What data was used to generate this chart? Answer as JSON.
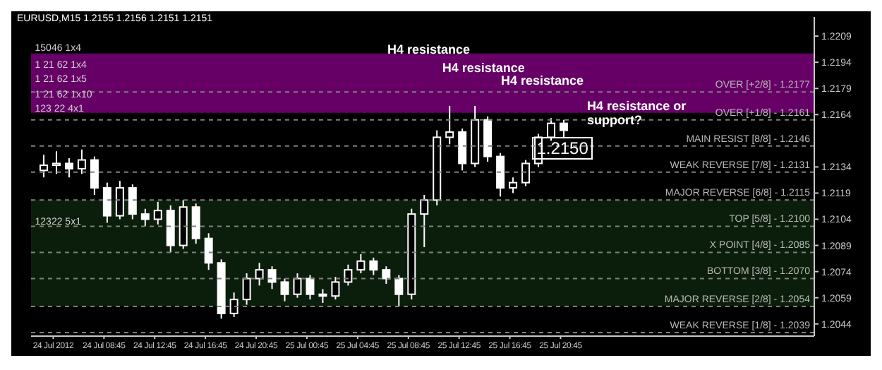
{
  "chart_data": {
    "type": "candlestick",
    "title": "EURUSD,M15  1.2155 1.2156 1.2151 1.2151",
    "x": [
      "2012-07-24T04:00",
      "2012-07-24T05:00",
      "2012-07-24T06:00",
      "2012-07-24T07:00",
      "2012-07-24T08:00",
      "2012-07-24T09:00",
      "2012-07-24T10:00",
      "2012-07-24T11:00",
      "2012-07-24T12:00",
      "2012-07-24T13:00",
      "2012-07-24T14:00",
      "2012-07-24T15:00",
      "2012-07-24T16:00",
      "2012-07-24T17:00",
      "2012-07-24T18:00",
      "2012-07-24T19:00",
      "2012-07-24T20:00",
      "2012-07-24T21:00",
      "2012-07-24T22:00",
      "2012-07-24T23:00",
      "2012-07-25T00:00",
      "2012-07-25T01:00",
      "2012-07-25T02:00",
      "2012-07-25T03:00",
      "2012-07-25T04:00",
      "2012-07-25T05:00",
      "2012-07-25T06:00",
      "2012-07-25T07:00",
      "2012-07-25T08:00",
      "2012-07-25T09:00",
      "2012-07-25T10:00",
      "2012-07-25T11:00",
      "2012-07-25T12:00",
      "2012-07-25T13:00",
      "2012-07-25T14:00",
      "2012-07-25T15:00",
      "2012-07-25T16:00",
      "2012-07-25T17:00",
      "2012-07-25T18:00",
      "2012-07-25T19:00",
      "2012-07-25T20:00",
      "2012-07-25T21:00"
    ],
    "ohlc": [
      [
        1.2132,
        1.2141,
        1.2128,
        1.2135
      ],
      [
        1.2135,
        1.2143,
        1.213,
        1.2136
      ],
      [
        1.2136,
        1.2139,
        1.2128,
        1.2133
      ],
      [
        1.2133,
        1.2144,
        1.213,
        1.2138
      ],
      [
        1.2138,
        1.214,
        1.2118,
        1.2122
      ],
      [
        1.2122,
        1.2125,
        1.2102,
        1.2106
      ],
      [
        1.2106,
        1.2126,
        1.2104,
        1.2122
      ],
      [
        1.2122,
        1.2124,
        1.2104,
        1.2107
      ],
      [
        1.2107,
        1.211,
        1.21,
        1.2104
      ],
      [
        1.2104,
        1.2114,
        1.2101,
        1.2109
      ],
      [
        1.2109,
        1.2112,
        1.2085,
        1.2089
      ],
      [
        1.2089,
        1.2115,
        1.2087,
        1.2111
      ],
      [
        1.2111,
        1.2113,
        1.209,
        1.2093
      ],
      [
        1.2093,
        1.2096,
        1.2075,
        1.2079
      ],
      [
        1.2079,
        1.2081,
        1.2047,
        1.205
      ],
      [
        1.205,
        1.2062,
        1.2048,
        1.2058
      ],
      [
        1.2058,
        1.2073,
        1.2055,
        1.207
      ],
      [
        1.207,
        1.2079,
        1.2066,
        1.2075
      ],
      [
        1.2075,
        1.2077,
        1.2064,
        1.2068
      ],
      [
        1.2068,
        1.207,
        1.2057,
        1.2061
      ],
      [
        1.2061,
        1.2073,
        1.2059,
        1.207
      ],
      [
        1.207,
        1.2072,
        1.2058,
        1.2061
      ],
      [
        1.2061,
        1.2064,
        1.2056,
        1.206
      ],
      [
        1.206,
        1.2071,
        1.2058,
        1.2068
      ],
      [
        1.2068,
        1.2078,
        1.2066,
        1.2075
      ],
      [
        1.2075,
        1.2084,
        1.2073,
        1.208
      ],
      [
        1.208,
        1.2082,
        1.2072,
        1.2075
      ],
      [
        1.2075,
        1.2077,
        1.2067,
        1.207
      ],
      [
        1.207,
        1.2072,
        1.2054,
        1.2061
      ],
      [
        1.2061,
        1.211,
        1.2058,
        1.2107
      ],
      [
        1.2107,
        1.2118,
        1.2088,
        1.2115
      ],
      [
        1.2115,
        1.2155,
        1.2112,
        1.2151
      ],
      [
        1.2151,
        1.2169,
        1.2147,
        1.2154
      ],
      [
        1.2154,
        1.2156,
        1.2132,
        1.2136
      ],
      [
        1.2136,
        1.2169,
        1.2134,
        1.2161
      ],
      [
        1.2161,
        1.2163,
        1.2137,
        1.214
      ],
      [
        1.214,
        1.2142,
        1.2117,
        1.2122
      ],
      [
        1.2122,
        1.2128,
        1.2119,
        1.2125
      ],
      [
        1.2125,
        1.2138,
        1.2123,
        1.2136
      ],
      [
        1.2136,
        1.2153,
        1.2134,
        1.2151
      ],
      [
        1.2151,
        1.2162,
        1.2149,
        1.2159
      ],
      [
        1.2159,
        1.2161,
        1.2151,
        1.2155
      ]
    ],
    "color": "#ffffff",
    "xlim": [
      "2012-07-24T03:00",
      "2012-07-26T16:45"
    ],
    "xticks": [
      {
        "value": "2012-07-24T04:45",
        "label": "24 Jul 2012"
      },
      {
        "value": "2012-07-24T08:45",
        "label": "24 Jul 08:45"
      },
      {
        "value": "2012-07-24T12:45",
        "label": "24 Jul 12:45"
      },
      {
        "value": "2012-07-24T16:45",
        "label": "24 Jul 16:45"
      },
      {
        "value": "2012-07-24T20:45",
        "label": "24 Jul 20:45"
      },
      {
        "value": "2012-07-25T00:45",
        "label": "25 Jul 00:45"
      },
      {
        "value": "2012-07-25T04:45",
        "label": "25 Jul 04:45"
      },
      {
        "value": "2012-07-25T08:45",
        "label": "25 Jul 08:45"
      },
      {
        "value": "2012-07-25T12:45",
        "label": "25 Jul 12:45"
      },
      {
        "value": "2012-07-25T16:45",
        "label": "25 Jul 16:45"
      },
      {
        "value": "2012-07-25T20:45",
        "label": "25 Jul 20:45"
      }
    ],
    "ylim": [
      1.2037,
      1.222
    ],
    "yticks": [
      1.2209,
      1.2194,
      1.2179,
      1.2164,
      1.2134,
      1.2119,
      1.2104,
      1.2089,
      1.2074,
      1.2059,
      1.2044
    ],
    "ref_lines": [
      {
        "axis": "y",
        "value": 1.2177,
        "label": "OVER  [+2/8] - 1.2177",
        "color": "#808080",
        "line_style": "dashed"
      },
      {
        "axis": "y",
        "value": 1.2161,
        "label": "OVER  [+1/8] - 1.2161",
        "color": "#808080",
        "line_style": "dashed"
      },
      {
        "axis": "y",
        "value": 1.2146,
        "label": "MAIN RESIST  [8/8] - 1.2146",
        "color": "#808080",
        "line_style": "dashed"
      },
      {
        "axis": "y",
        "value": 1.2131,
        "label": "WEAK REVERSE  [7/8] - 1.2131",
        "color": "#808080",
        "line_style": "dashed"
      },
      {
        "axis": "y",
        "value": 1.2115,
        "label": "MAJOR REVERSE  [6/8] - 1.2115",
        "color": "#808080",
        "line_style": "dashed"
      },
      {
        "axis": "y",
        "value": 1.21,
        "label": "TOP  [5/8] - 1.2100",
        "color": "#808080",
        "line_style": "dashed"
      },
      {
        "axis": "y",
        "value": 1.2085,
        "label": "X POINT  [4/8] - 1.2085",
        "color": "#808080",
        "line_style": "dashed"
      },
      {
        "axis": "y",
        "value": 1.207,
        "label": "BOTTOM  [3/8] - 1.2070",
        "color": "#808080",
        "line_style": "dashed"
      },
      {
        "axis": "y",
        "value": 1.2054,
        "label": "MAJOR REVERSE  [2/8] - 1.2054",
        "color": "#808080",
        "line_style": "dashed"
      },
      {
        "axis": "y",
        "value": 1.2039,
        "label": "WEAK REVERSE  [1/8] - 1.2039",
        "color": "#808080",
        "line_style": "dashed"
      }
    ],
    "bands": [
      {
        "axis": "y",
        "from": 1.2165,
        "to": 1.2199,
        "color": "#800080"
      },
      {
        "axis": "y",
        "from": 1.2054,
        "to": 1.2115,
        "color": "#0e260e"
      }
    ],
    "annotations": [
      "H4 resistance",
      "H4 resistance",
      "H4 resistance",
      "H4 resistance or support?",
      "1.2150",
      "15046 1x4",
      "1 21 62 1x4",
      "1 21 62 1x5",
      "1 21 62 1x10",
      "123 22 4x1",
      "12322 5x1"
    ]
  }
}
